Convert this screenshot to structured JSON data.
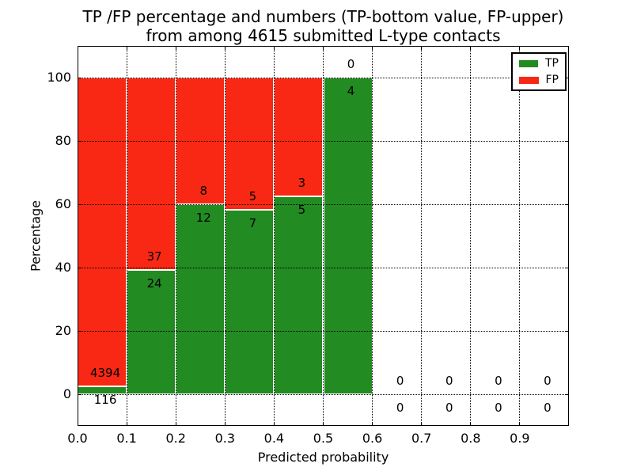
{
  "chart_data": {
    "type": "bar",
    "variant": "100pct-stacked-histogram",
    "title_lines": [
      "TP /FP percentage and numbers (TP-bottom value, FP-upper)",
      "from among 4615 submitted L-type contacts"
    ],
    "xlabel": "Predicted probability",
    "ylabel": "Percentage",
    "xlim": [
      0.0,
      1.0
    ],
    "ylim": [
      -10,
      110
    ],
    "x_ticks": [
      "0.0",
      "0.1",
      "0.2",
      "0.3",
      "0.4",
      "0.5",
      "0.6",
      "0.7",
      "0.8",
      "0.9"
    ],
    "y_ticks": [
      "0",
      "20",
      "40",
      "60",
      "80",
      "100"
    ],
    "grid": "dotted-black",
    "bin_edges": [
      0.0,
      0.1,
      0.2,
      0.3,
      0.4,
      0.5,
      0.6,
      0.7,
      0.8,
      0.9,
      1.0
    ],
    "series": [
      {
        "name": "TP",
        "color": "#228b22",
        "values": [
          116,
          24,
          12,
          7,
          5,
          4,
          0,
          0,
          0,
          0
        ]
      },
      {
        "name": "FP",
        "color": "#f92814",
        "values": [
          4394,
          37,
          8,
          5,
          3,
          0,
          0,
          0,
          0,
          0
        ]
      }
    ],
    "bar_edge_color": "#ffffff",
    "annotation_rule": "FP count above segment boundary, TP count below",
    "legend": {
      "position": "upper right",
      "items": [
        {
          "label": "TP",
          "color": "#228b22"
        },
        {
          "label": "FP",
          "color": "#f92814"
        }
      ]
    }
  }
}
